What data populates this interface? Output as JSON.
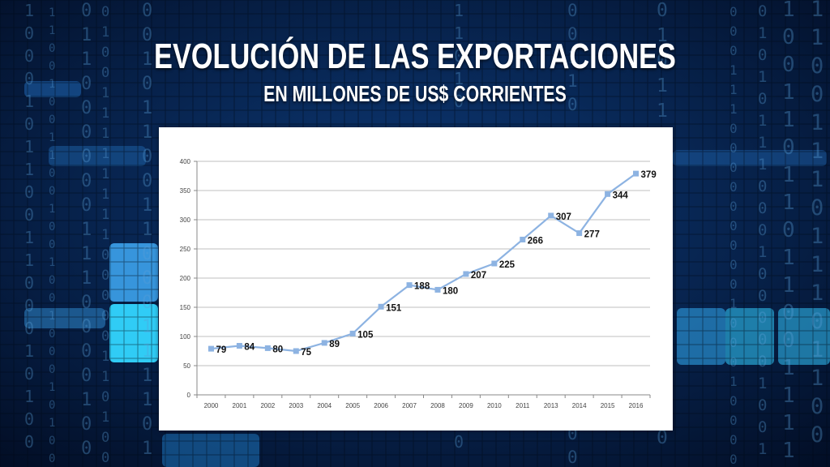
{
  "header": {
    "title": "EVOLUCIÓN DE LAS EXPORTACIONES",
    "subtitle": "EN MILLONES DE US$ CORRIENTES"
  },
  "colors": {
    "background": "#06204a",
    "line": "#8db3e2",
    "marker": "#8db3e2",
    "grid": "#bfbfbf",
    "panel": "#ffffff"
  },
  "chart_data": {
    "type": "line",
    "title": "EVOLUCIÓN DE LAS EXPORTACIONES",
    "subtitle": "EN MILLONES DE US$ CORRIENTES",
    "xlabel": "",
    "ylabel": "",
    "categories": [
      "2000",
      "2001",
      "2002",
      "2003",
      "2004",
      "2005",
      "2006",
      "2007",
      "2008",
      "2009",
      "2010",
      "2011",
      "2013",
      "2014",
      "2015",
      "2016"
    ],
    "series": [
      {
        "name": "Exportaciones",
        "values": [
          79,
          84,
          80,
          75,
          89,
          105,
          151,
          188,
          180,
          207,
          225,
          266,
          307,
          277,
          344,
          379
        ]
      }
    ],
    "ylim": [
      0,
      400
    ],
    "yticks": [
      0,
      50,
      100,
      150,
      200,
      250,
      300,
      350,
      400
    ],
    "ytick_labels": [
      "0",
      "50",
      "100",
      "150",
      "200",
      "250",
      "300",
      "350",
      "400"
    ],
    "grid": true,
    "legend": "none",
    "data_labels": true
  }
}
